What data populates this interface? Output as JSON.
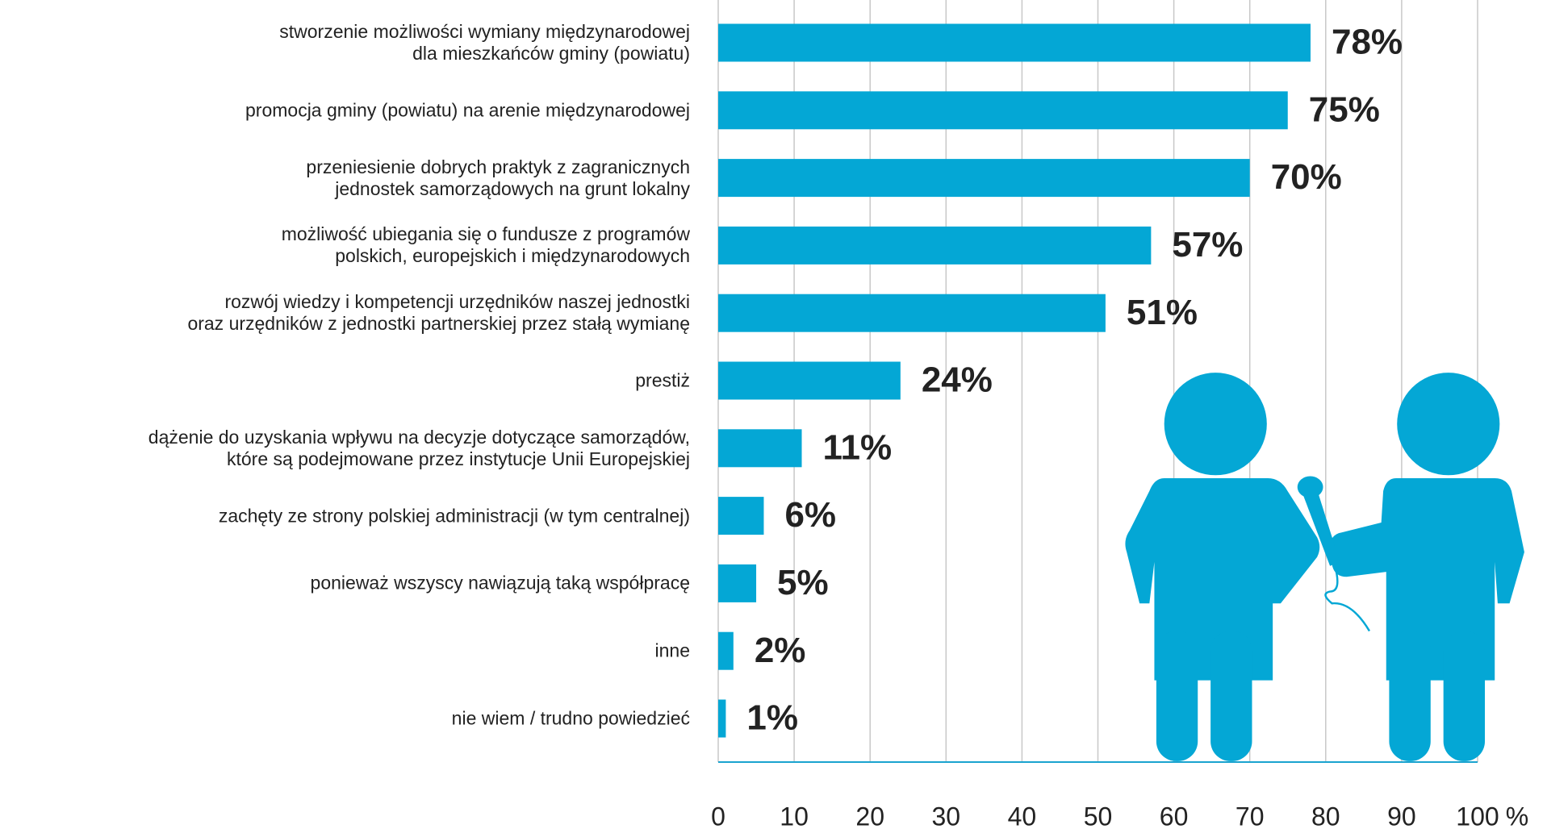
{
  "chart_data": {
    "type": "bar",
    "orientation": "horizontal",
    "categories": [
      "stworzenie możliwości wymiany międzynarodowej\ndla mieszkańców gminy (powiatu)",
      "promocja gminy (powiatu) na arenie międzynarodowej",
      "przeniesienie dobrych praktyk z zagranicznych\njednostek samorządowych na grunt lokalny",
      "możliwość ubiegania się o fundusze z programów\npolskich, europejskich i międzynarodowych",
      "rozwój wiedzy i kompetencji urzędników naszej jednostki\noraz urzędników z jednostki partnerskiej przez stałą wymianę",
      "prestiż",
      "dążenie do uzyskania wpływu na decyzje dotyczące samorządów,\nktóre są podejmowane przez instytucje Unii Europejskiej",
      "zachęty ze strony polskiej administracji (w tym centralnej)",
      "ponieważ wszyscy nawiązują taką współpracę",
      "inne",
      "nie wiem / trudno powiedzieć"
    ],
    "values": [
      78,
      75,
      70,
      57,
      51,
      24,
      11,
      6,
      5,
      2,
      1
    ],
    "value_labels": [
      "78%",
      "75%",
      "70%",
      "57%",
      "51%",
      "24%",
      "11%",
      "6%",
      "5%",
      "2%",
      "1%"
    ],
    "color": "#04a7d5",
    "xlim": [
      0,
      100
    ],
    "xticks": [
      0,
      10,
      20,
      30,
      40,
      50,
      60,
      70,
      80,
      90,
      100
    ],
    "xlabel": "%",
    "grid": true
  }
}
